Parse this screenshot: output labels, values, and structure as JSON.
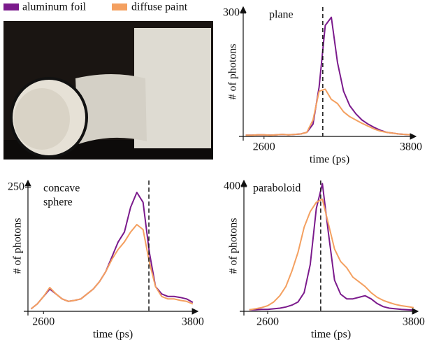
{
  "chart_data": [
    {
      "type": "line",
      "annotation": [
        "plane"
      ],
      "xlabel": "time (ps)",
      "ylabel": "# of photons",
      "x": [
        2450,
        2500,
        2550,
        2600,
        2650,
        2700,
        2750,
        2800,
        2850,
        2900,
        2950,
        3000,
        3050,
        3100,
        3150,
        3200,
        3250,
        3300,
        3350,
        3400,
        3450,
        3500,
        3550,
        3600,
        3650,
        3700,
        3750,
        3800
      ],
      "series": [
        {
          "name": "aluminum foil",
          "color": "#7b1a8c",
          "values": [
            3,
            3,
            4,
            4,
            3,
            4,
            5,
            4,
            5,
            6,
            10,
            30,
            120,
            270,
            290,
            180,
            110,
            75,
            55,
            40,
            30,
            22,
            15,
            10,
            8,
            6,
            5,
            4
          ]
        },
        {
          "name": "diffuse paint",
          "color": "#f4a060",
          "values": [
            3,
            3,
            4,
            4,
            3,
            4,
            5,
            4,
            5,
            6,
            10,
            40,
            110,
            115,
            90,
            80,
            60,
            48,
            40,
            32,
            25,
            18,
            13,
            10,
            8,
            6,
            5,
            4
          ]
        }
      ],
      "xlim": [
        2430,
        3840
      ],
      "ylim": [
        0,
        315
      ],
      "xticks": [
        2600,
        3800
      ],
      "yticks": [
        300
      ],
      "vline": 3080
    },
    {
      "type": "line",
      "annotation": [
        "concave",
        "sphere"
      ],
      "xlabel": "time (ps)",
      "ylabel": "# of photons",
      "x": [
        2500,
        2550,
        2600,
        2650,
        2700,
        2750,
        2800,
        2850,
        2900,
        2950,
        3000,
        3050,
        3100,
        3150,
        3200,
        3250,
        3300,
        3350,
        3400,
        3450,
        3500,
        3550,
        3600,
        3650,
        3700,
        3750,
        3800
      ],
      "series": [
        {
          "color": "#7b1a8c",
          "values": [
            5,
            15,
            30,
            45,
            35,
            25,
            20,
            22,
            25,
            35,
            45,
            60,
            80,
            110,
            140,
            160,
            210,
            240,
            220,
            120,
            50,
            35,
            30,
            30,
            28,
            25,
            18
          ]
        },
        {
          "color": "#f4a060",
          "values": [
            5,
            15,
            30,
            48,
            35,
            25,
            20,
            22,
            25,
            35,
            45,
            60,
            80,
            105,
            125,
            140,
            160,
            175,
            165,
            100,
            50,
            30,
            25,
            25,
            22,
            20,
            15
          ]
        }
      ],
      "xlim": [
        2475,
        3840
      ],
      "ylim": [
        0,
        264
      ],
      "xticks": [
        2600,
        3800
      ],
      "yticks": [
        250
      ],
      "vline": 3447
    },
    {
      "type": "line",
      "annotation": [
        "paraboloid"
      ],
      "xlabel": "time (ps)",
      "ylabel": "# of photons",
      "x": [
        2450,
        2500,
        2550,
        2600,
        2650,
        2700,
        2750,
        2800,
        2850,
        2900,
        2950,
        3000,
        3050,
        3100,
        3150,
        3200,
        3250,
        3300,
        3350,
        3400,
        3450,
        3500,
        3550,
        3600,
        3650,
        3700,
        3750,
        3800
      ],
      "series": [
        {
          "color": "#7b1a8c",
          "values": [
            5,
            5,
            6,
            6,
            8,
            10,
            14,
            20,
            30,
            60,
            150,
            330,
            410,
            250,
            100,
            55,
            40,
            40,
            45,
            50,
            40,
            25,
            15,
            10,
            8,
            6,
            5,
            4
          ]
        },
        {
          "color": "#f4a060",
          "values": [
            5,
            8,
            12,
            18,
            30,
            50,
            80,
            130,
            190,
            270,
            320,
            350,
            360,
            280,
            200,
            160,
            140,
            110,
            95,
            80,
            60,
            45,
            35,
            28,
            22,
            18,
            15,
            12
          ]
        }
      ],
      "xlim": [
        2405,
        3835
      ],
      "ylim": [
        0,
        420
      ],
      "xticks": [
        2600,
        3800
      ],
      "yticks": [
        400
      ],
      "vline": 3036
    }
  ]
}
